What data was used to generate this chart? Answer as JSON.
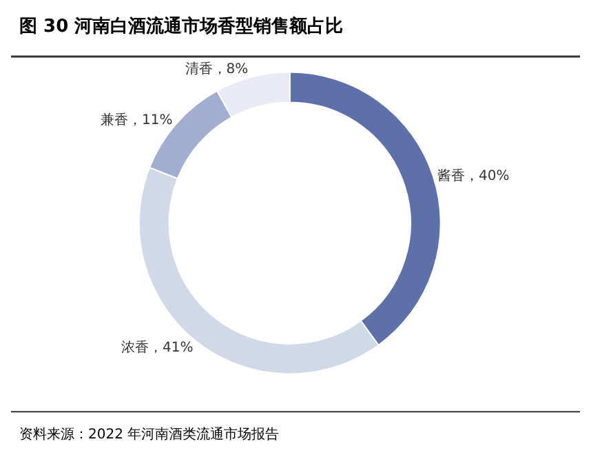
{
  "chart_data": {
    "type": "donut",
    "title": "图 30 河南白酒流通市场香型销售额占比",
    "categories": [
      "酱香",
      "浓香",
      "兼香",
      "清香"
    ],
    "values": [
      40,
      41,
      11,
      8
    ],
    "colors": [
      "#5d70a9",
      "#d1d8e7",
      "#a1aed0",
      "#e8ebf3"
    ],
    "value_labels": [
      "40%",
      "41%",
      "11%",
      "8%"
    ],
    "annotations": [
      "资料来源：2022 年河南酒类流通市场报告"
    ],
    "legend": false
  }
}
